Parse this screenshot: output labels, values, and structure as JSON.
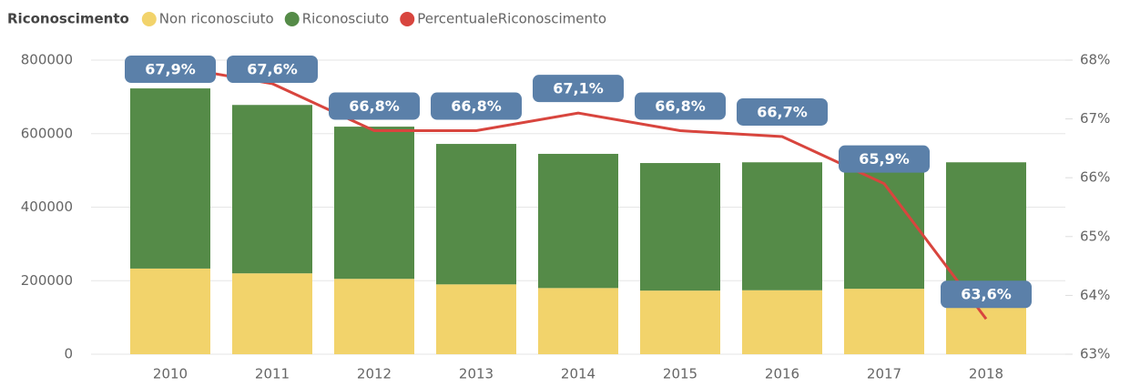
{
  "chart_data": {
    "type": "bar",
    "stacked": true,
    "legend_title": "Riconoscimento",
    "legend_position": "top-left",
    "grid": true,
    "categories": [
      "2010",
      "2011",
      "2012",
      "2013",
      "2014",
      "2015",
      "2016",
      "2017",
      "2018"
    ],
    "series": [
      {
        "name": "Non riconosciuto",
        "type": "bar",
        "color": "#f2d36b",
        "values": [
          233000,
          220000,
          205000,
          190000,
          180000,
          173000,
          174000,
          178000,
          190000
        ]
      },
      {
        "name": "Riconosciuto",
        "type": "bar",
        "color": "#558b48",
        "values": [
          490000,
          458000,
          414000,
          382000,
          365000,
          347000,
          348000,
          344000,
          332000
        ]
      },
      {
        "name": "PercentualeRiconoscimento",
        "type": "line",
        "axis": "y2",
        "color": "#d8453e",
        "label_color": "#5b80a9",
        "values": [
          67.9,
          67.6,
          66.8,
          66.8,
          67.1,
          66.8,
          66.7,
          65.9,
          63.6
        ],
        "value_labels": [
          "67,9%",
          "67,6%",
          "66,8%",
          "66,8%",
          "67,1%",
          "66,8%",
          "66,7%",
          "65,9%",
          "63,6%"
        ]
      }
    ],
    "ylim": [
      0,
      800000
    ],
    "yticks": [
      0,
      200000,
      400000,
      600000,
      800000
    ],
    "y2lim": [
      63,
      68
    ],
    "y2ticks": [
      {
        "value": 63,
        "label": "63%"
      },
      {
        "value": 64,
        "label": "64%"
      },
      {
        "value": 65,
        "label": "65%"
      },
      {
        "value": 66,
        "label": "66%"
      },
      {
        "value": 67,
        "label": "67%"
      },
      {
        "value": 68,
        "label": "68%"
      }
    ]
  }
}
